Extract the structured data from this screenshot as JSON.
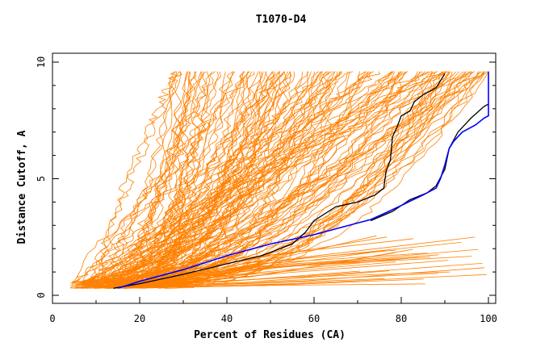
{
  "chart_data": {
    "type": "line",
    "title": "T1070-D4",
    "xlabel": "Percent of Residues (CA)",
    "ylabel": "Distance Cutoff, A",
    "xlim": [
      0,
      100
    ],
    "ylim": [
      0,
      10
    ],
    "x_ticks": [
      "0",
      "20",
      "40",
      "60",
      "80",
      "100"
    ],
    "y_ticks": [
      "0",
      "5",
      "10"
    ],
    "grid": false,
    "legend": "none",
    "colors": {
      "background_models": "#ff8000",
      "black_model": "#000000",
      "blue_model": "#0000ff"
    },
    "background_series_count": 140,
    "highlight_series": [
      {
        "color": "#000000",
        "points": [
          [
            14,
            0.3
          ],
          [
            20,
            0.5
          ],
          [
            30,
            0.9
          ],
          [
            40,
            1.35
          ],
          [
            48,
            1.7
          ],
          [
            55,
            2.2
          ],
          [
            58,
            2.7
          ],
          [
            60,
            3.2
          ],
          [
            65,
            3.8
          ],
          [
            70,
            4.0
          ],
          [
            74,
            4.3
          ],
          [
            76,
            4.6
          ],
          [
            76.5,
            5.3
          ],
          [
            77.5,
            5.8
          ],
          [
            78,
            6.8
          ],
          [
            79,
            7.2
          ],
          [
            80,
            7.7
          ],
          [
            82,
            7.9
          ],
          [
            83,
            8.3
          ],
          [
            85,
            8.6
          ],
          [
            88,
            8.9
          ],
          [
            90,
            9.5
          ]
        ]
      },
      {
        "color": "#000000",
        "points": [
          [
            73,
            3.2
          ],
          [
            78,
            3.6
          ],
          [
            82,
            4.1
          ],
          [
            86,
            4.4
          ],
          [
            88,
            4.7
          ],
          [
            90,
            5.4
          ],
          [
            91,
            6.3
          ],
          [
            93,
            7.0
          ],
          [
            96,
            7.6
          ],
          [
            99,
            8.1
          ],
          [
            100,
            8.2
          ]
        ]
      },
      {
        "color": "#0000ff",
        "points": [
          [
            15,
            0.3
          ],
          [
            20,
            0.6
          ],
          [
            30,
            1.1
          ],
          [
            40,
            1.7
          ],
          [
            50,
            2.2
          ],
          [
            60,
            2.6
          ],
          [
            65,
            2.85
          ],
          [
            70,
            3.1
          ],
          [
            73,
            3.25
          ],
          [
            76,
            3.5
          ],
          [
            80,
            3.85
          ],
          [
            85,
            4.3
          ],
          [
            88,
            4.6
          ],
          [
            89,
            5.0
          ],
          [
            90,
            5.6
          ],
          [
            91,
            6.3
          ],
          [
            92,
            6.6
          ],
          [
            94,
            7.0
          ],
          [
            97,
            7.3
          ],
          [
            99,
            7.6
          ],
          [
            100,
            7.7
          ],
          [
            100,
            9.6
          ]
        ]
      }
    ]
  }
}
